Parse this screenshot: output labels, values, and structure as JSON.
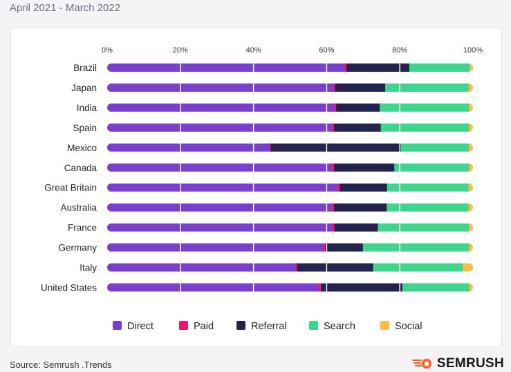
{
  "header": {
    "period": "April 2021 - March 2022"
  },
  "footer": {
    "source": "Source: Semrush .Trends",
    "brand": "SEMRUSH"
  },
  "colors": {
    "Direct": "#7b3fcf",
    "Paid": "#f0146e",
    "Referral": "#24224e",
    "Search": "#3dd68c",
    "Social": "#fbbd45",
    "brand_accent": "#ff642d"
  },
  "chart_data": {
    "type": "bar",
    "orientation": "horizontal",
    "stacked": true,
    "categories": [
      "Brazil",
      "Japan",
      "India",
      "Spain",
      "Mexico",
      "Canada",
      "Great Britain",
      "Australia",
      "France",
      "Germany",
      "Italy",
      "United States"
    ],
    "x_ticks": [
      "0%",
      "20%",
      "40%",
      "60%",
      "80%",
      "100%"
    ],
    "xlim": [
      0,
      100
    ],
    "legend_position": "bottom",
    "series": [
      {
        "name": "Direct",
        "values": [
          64.8,
          61.7,
          62.0,
          61.4,
          44.5,
          61.4,
          63.0,
          61.4,
          61.5,
          59.0,
          51.5,
          58.0
        ]
      },
      {
        "name": "Paid",
        "values": [
          0.6,
          0.6,
          0.6,
          0.6,
          0.2,
          0.6,
          0.6,
          0.6,
          0.6,
          0.6,
          0.4,
          0.5
        ]
      },
      {
        "name": "Referral",
        "values": [
          17.2,
          13.7,
          11.9,
          12.8,
          35.6,
          16.5,
          12.9,
          14.4,
          11.9,
          10.3,
          20.8,
          22.2
        ]
      },
      {
        "name": "Search",
        "values": [
          16.5,
          22.8,
          24.4,
          24.1,
          18.6,
          20.4,
          22.3,
          22.4,
          24.9,
          29.0,
          24.5,
          18.3
        ]
      },
      {
        "name": "Social",
        "values": [
          0.9,
          1.2,
          1.1,
          1.1,
          1.1,
          1.1,
          1.2,
          1.2,
          1.1,
          1.1,
          2.8,
          1.0
        ]
      }
    ]
  }
}
